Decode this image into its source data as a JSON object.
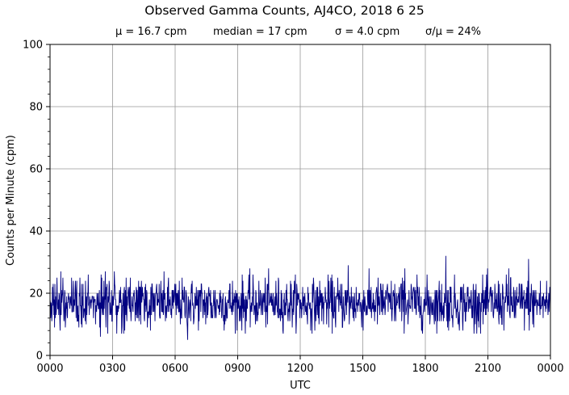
{
  "chart_data": {
    "type": "line",
    "title": "Observed Gamma Counts, AJ4CO, 2018 6 25",
    "stats": [
      "μ = 16.7 cpm",
      "median = 17 cpm",
      "σ = 4.0 cpm",
      "σ/μ = 24%"
    ],
    "xlabel": "UTC",
    "ylabel": "Counts per Minute (cpm)",
    "x_tick_labels": [
      "0000",
      "0300",
      "0600",
      "0900",
      "1200",
      "1500",
      "1800",
      "2100",
      "0000"
    ],
    "y_tick_labels": [
      "0",
      "20",
      "40",
      "60",
      "80",
      "100"
    ],
    "xlim_minutes": [
      0,
      1440
    ],
    "ylim": [
      0,
      100
    ],
    "grid": true,
    "series": [
      {
        "color": "#000080",
        "sampling": "one value per minute, 1440 samples",
        "mean": 16.7,
        "median": 17,
        "std": 4.0,
        "min": 5,
        "max": 32,
        "spikes": [
          {
            "minute": 145,
            "value": 6
          },
          {
            "minute": 396,
            "value": 5
          },
          {
            "minute": 858,
            "value": 29
          },
          {
            "minute": 1021,
            "value": 28
          },
          {
            "minute": 1139,
            "value": 32
          },
          {
            "minute": 1320,
            "value": 28
          },
          {
            "minute": 1377,
            "value": 31
          }
        ]
      }
    ]
  }
}
